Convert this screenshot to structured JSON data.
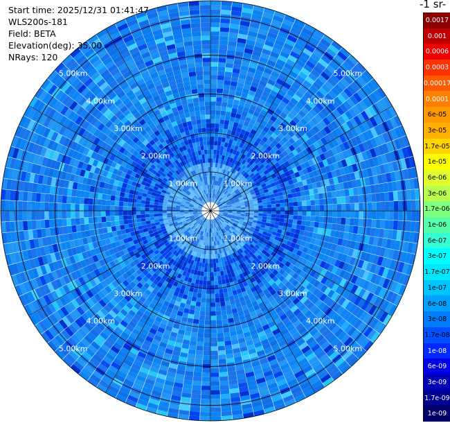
{
  "info": {
    "start_time": "Start time: 2025/12/31 01:41:47",
    "instrument": "WLS200s-181",
    "field": "Field: BETA",
    "elevation": "Elevation(deg): 35.00",
    "nrays": "NRays: 120"
  },
  "colorbar": {
    "unit_title": "-1 sr-",
    "levels": [
      "0.0017",
      "0.001",
      "0.0006",
      "0.0003",
      "0.00017",
      "0.0001",
      "6e-05",
      "3e-05",
      "1.7e-05",
      "1e-05",
      "6e-06",
      "3e-06",
      "1.7e-06",
      "1e-06",
      "6e-07",
      "3e-07",
      "1.7e-07",
      "1e-07",
      "6e-08",
      "3e-08",
      "1.7e-08",
      "1e-08",
      "6e-09",
      "3e-09",
      "1.7e-09",
      "1e-09"
    ],
    "colors": [
      "#8b0000",
      "#c00000",
      "#ee0000",
      "#ff3300",
      "#ff5a00",
      "#ff7f00",
      "#ff9900",
      "#ffb000",
      "#ffd500",
      "#ffff00",
      "#e0ff30",
      "#b8ff50",
      "#80ff80",
      "#55ffaa",
      "#33ffd2",
      "#00ffff",
      "#00e6ff",
      "#00c4ff",
      "#00a0ff",
      "#007dff",
      "#0050ff",
      "#0028ff",
      "#0000e6",
      "#0000b4",
      "#000090",
      "#000068"
    ],
    "text_colors": [
      "#ffffff",
      "#ffffff",
      "#ffffff",
      "#ffffff",
      "#ffffff",
      "#ffffff",
      "#000000",
      "#000000",
      "#000000",
      "#000000",
      "#000000",
      "#000000",
      "#000000",
      "#000000",
      "#000000",
      "#000000",
      "#000000",
      "#000000",
      "#000000",
      "#000000",
      "#000000",
      "#ffffff",
      "#ffffff",
      "#ffffff",
      "#ffffff",
      "#ffffff"
    ]
  },
  "chart_data": {
    "type": "heatmap",
    "projection": "polar PPI",
    "field": "BETA",
    "elevation_deg": 35.0,
    "n_rays": 120,
    "range_rings_km": [
      1,
      2,
      3,
      4,
      5
    ],
    "range_ring_labels": [
      "1.00km",
      "2.00km",
      "3.00km",
      "4.00km",
      "5.00km"
    ],
    "max_range_km": 5.4,
    "background_level": "1.7e-08 to 1e-07",
    "inner_level": "6e-09 to 1e-08"
  }
}
